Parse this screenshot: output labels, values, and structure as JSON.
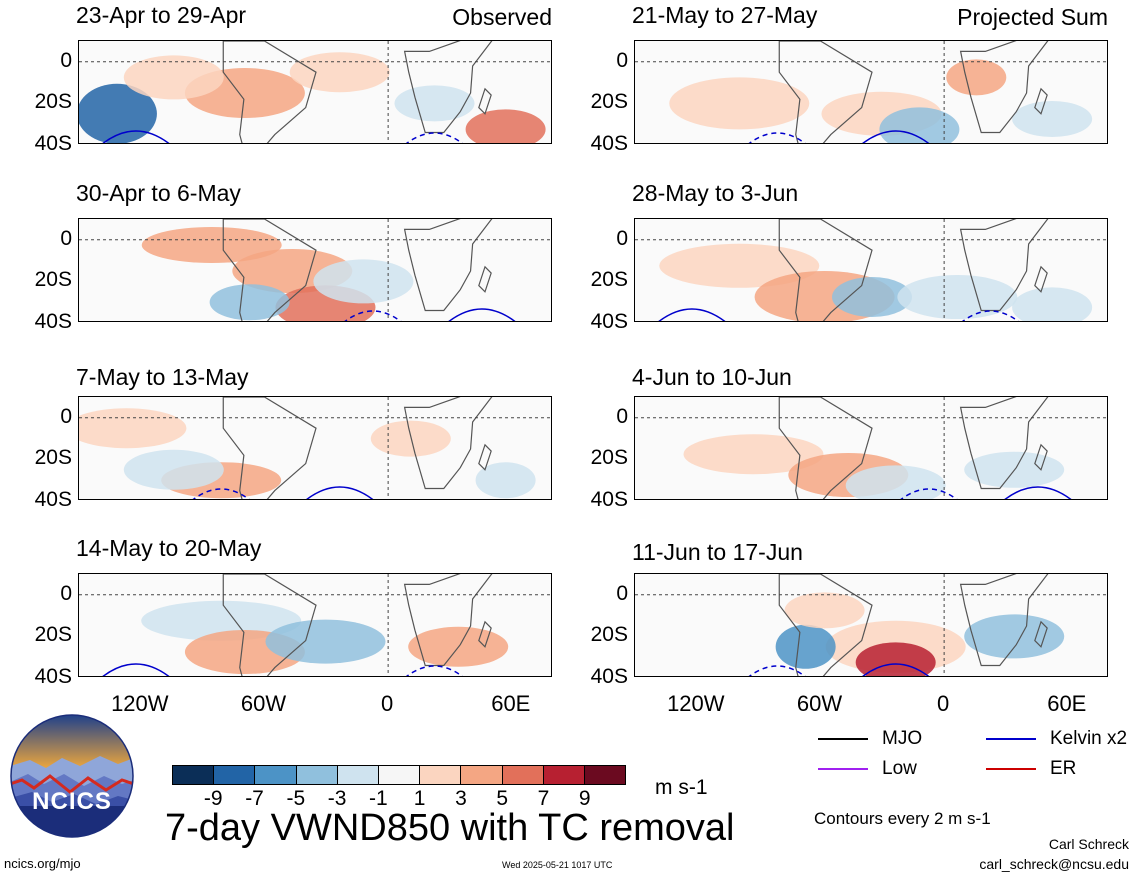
{
  "colors": {
    "neg9": "#0b2e57",
    "neg7": "#2264a6",
    "neg5": "#4c93c6",
    "neg3": "#90c0dd",
    "neg1": "#cfe3ef",
    "zero": "#f6f6f6",
    "pos1": "#fbd5c0",
    "pos3": "#f4a683",
    "pos5": "#e2705a",
    "pos7": "#b72031",
    "pos9": "#6b0a20",
    "mjo": "#000000",
    "kelvin": "#0000cc",
    "low": "#a020f0",
    "er": "#cc0000"
  },
  "panels": [
    {
      "title": "23-Apr to 29-Apr",
      "corner": "Observed"
    },
    {
      "title": "21-May to 27-May",
      "corner": "Projected Sum"
    },
    {
      "title": "30-Apr to 6-May",
      "corner": ""
    },
    {
      "title": "28-May to 3-Jun",
      "corner": ""
    },
    {
      "title": "7-May to 13-May",
      "corner": ""
    },
    {
      "title": "4-Jun to 10-Jun",
      "corner": ""
    },
    {
      "title": "14-May to 20-May",
      "corner": ""
    },
    {
      "title": "11-Jun to 17-Jun",
      "corner": ""
    }
  ],
  "y_ticks": [
    "0",
    "20S",
    "40S"
  ],
  "x_ticks": [
    "120W",
    "60W",
    "0",
    "60E"
  ],
  "colorbar": {
    "ticks": [
      "-9",
      "-7",
      "-5",
      "-3",
      "-1",
      "1",
      "3",
      "5",
      "7",
      "9"
    ],
    "units": "m s-1"
  },
  "legend": {
    "mjo": "MJO",
    "kelvin": "Kelvin x2",
    "low": "Low",
    "er": "ER",
    "contours_note": "Contours every 2 m s-1"
  },
  "main_title": "7-day VWND850 with TC removal",
  "logo_text": "NCICS",
  "footer": {
    "url": "ncics.org/mjo",
    "date": "Wed 2025-05-21 1017 UTC",
    "author": "Carl Schreck",
    "email": "carl_schreck@ncsu.edu"
  },
  "chart_data": {
    "type": "heatmap",
    "variable": "7-day VWND850 with TC removal",
    "units": "m s-1",
    "x_ticks": [
      "120W",
      "60W",
      "0",
      "60E"
    ],
    "y_ticks": [
      "0",
      "20S",
      "40S"
    ],
    "xlim": [
      -150,
      80
    ],
    "ylim": [
      -40,
      10
    ],
    "color_levels": [
      -9,
      -7,
      -5,
      -3,
      -1,
      1,
      3,
      5,
      7,
      9
    ],
    "contour_interval": 2,
    "panels": [
      {
        "period": "23-Apr to 29-Apr",
        "label": "Observed"
      },
      {
        "period": "30-Apr to 6-May"
      },
      {
        "period": "7-May to 13-May"
      },
      {
        "period": "14-May to 20-May"
      },
      {
        "period": "21-May to 27-May",
        "label": "Projected Sum"
      },
      {
        "period": "28-May to 3-Jun"
      },
      {
        "period": "4-Jun to 10-Jun"
      },
      {
        "period": "11-Jun to 17-Jun"
      }
    ]
  }
}
